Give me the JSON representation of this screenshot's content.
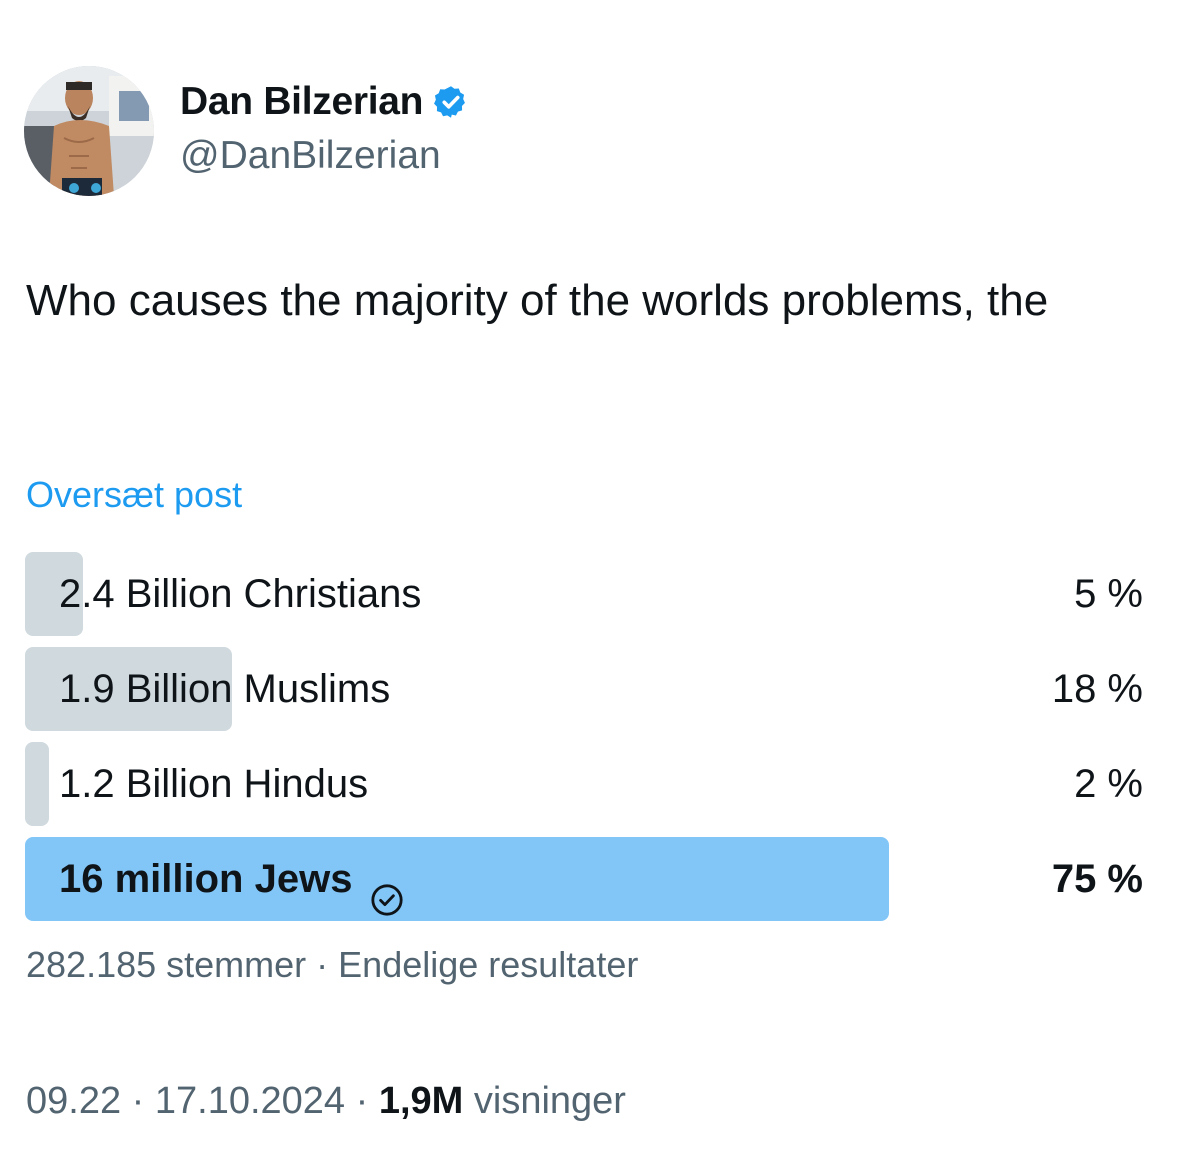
{
  "author": {
    "display_name": "Dan Bilzerian",
    "handle": "@DanBilzerian",
    "verified_icon": "verified-badge-icon",
    "verified_color": "#1d9bf0"
  },
  "tweet": {
    "text": "Who causes the majority of the worlds problems, the",
    "translate_label": "Oversæt post"
  },
  "poll": {
    "options": [
      {
        "label": "2.4 Billion Christians",
        "percent_label": "5 %",
        "percent": 5,
        "winner": false
      },
      {
        "label": "1.9 Billion Muslims",
        "percent_label": "18 %",
        "percent": 18,
        "winner": false
      },
      {
        "label": "1.2 Billion Hindus",
        "percent_label": "2 %",
        "percent": 2,
        "winner": false
      },
      {
        "label": "16 million Jews",
        "percent_label": "75 %",
        "percent": 75,
        "winner": true
      }
    ],
    "votes": "282.185 stemmer",
    "separator": " · ",
    "status": "Endelige resultater",
    "bar_color": "#cfd9de",
    "winner_bar_color": "#82c6f7",
    "winner_icon": "check-circle-icon"
  },
  "meta": {
    "time": "09.22",
    "date": "17.10.2024",
    "sep": " · ",
    "views_count": "1,9M",
    "views_label": " visninger"
  }
}
